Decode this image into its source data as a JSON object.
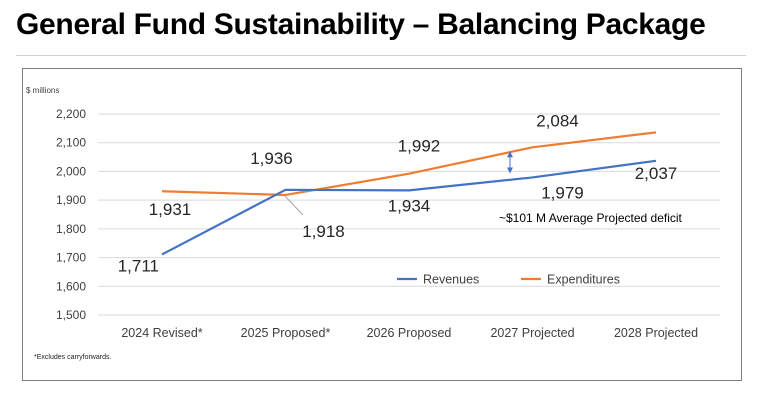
{
  "page": {
    "title": "General Fund Sustainability – Balancing Package",
    "footnote": "*Excludes carryforwards."
  },
  "chart_data": {
    "type": "line",
    "unit_label": "$ millions",
    "categories": [
      "2024 Revised*",
      "2025 Proposed*",
      "2026 Proposed",
      "2027 Projected",
      "2028 Projected"
    ],
    "ylim": [
      1500,
      2200
    ],
    "yticks": [
      1500,
      1600,
      1700,
      1800,
      1900,
      2000,
      2100,
      2200
    ],
    "ytick_labels": [
      "1,500",
      "1,600",
      "1,700",
      "1,800",
      "1,900",
      "2,000",
      "2,100",
      "2,200"
    ],
    "grid": true,
    "legend_position": "bottom-right",
    "series": [
      {
        "name": "Revenues",
        "color": "#4472C4",
        "values": [
          1711,
          1936,
          1934,
          1979,
          2037
        ],
        "labels": [
          "1,711",
          "1,936",
          "1,934",
          "1,979",
          "2,037"
        ]
      },
      {
        "name": "Expenditures",
        "color": "#ED7D31",
        "values": [
          1931,
          1918,
          1992,
          2084,
          2136
        ],
        "labels": [
          "1,931",
          "1,918",
          "1,992",
          "2,084",
          ""
        ]
      }
    ],
    "annotation": "~$101 M Average Projected deficit"
  }
}
